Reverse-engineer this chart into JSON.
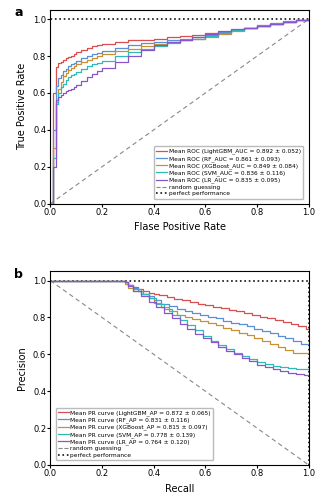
{
  "fig_size": [
    3.15,
    5.0
  ],
  "dpi": 100,
  "panel_a": {
    "title_label": "a",
    "xlabel": "Flase Positive Rate",
    "ylabel": "True Positive Rate",
    "xlim": [
      0.0,
      1.0
    ],
    "ylim": [
      0.0,
      1.05
    ],
    "xticks": [
      0.0,
      0.2,
      0.4,
      0.6,
      0.8,
      1.0
    ],
    "yticks": [
      0.0,
      0.2,
      0.4,
      0.6,
      0.8,
      1.0
    ],
    "curves": [
      {
        "name": "LightGBM",
        "label": "Mean ROC (LightGBM_AUC = 0.892 ± 0.052)",
        "color": "#d94f4f",
        "x": [
          0.0,
          0.01,
          0.02,
          0.03,
          0.04,
          0.05,
          0.06,
          0.07,
          0.08,
          0.09,
          0.1,
          0.12,
          0.14,
          0.16,
          0.18,
          0.2,
          0.25,
          0.3,
          0.35,
          0.4,
          0.45,
          0.5,
          0.55,
          0.6,
          0.65,
          0.7,
          0.75,
          0.8,
          0.85,
          0.9,
          0.95,
          1.0
        ],
        "y": [
          0.0,
          0.6,
          0.74,
          0.76,
          0.77,
          0.78,
          0.79,
          0.795,
          0.8,
          0.81,
          0.82,
          0.835,
          0.845,
          0.855,
          0.86,
          0.865,
          0.875,
          0.885,
          0.89,
          0.895,
          0.905,
          0.91,
          0.915,
          0.925,
          0.93,
          0.94,
          0.955,
          0.965,
          0.975,
          0.985,
          0.995,
          1.0
        ]
      },
      {
        "name": "RF",
        "label": "Mean ROC (RF_AUC = 0.861 ± 0.093)",
        "color": "#5b8fd6",
        "x": [
          0.0,
          0.01,
          0.02,
          0.03,
          0.04,
          0.05,
          0.06,
          0.07,
          0.08,
          0.09,
          0.1,
          0.12,
          0.14,
          0.16,
          0.18,
          0.2,
          0.25,
          0.3,
          0.35,
          0.4,
          0.45,
          0.5,
          0.55,
          0.6,
          0.65,
          0.7,
          0.75,
          0.8,
          0.85,
          0.9,
          0.95,
          1.0
        ],
        "y": [
          0.0,
          0.4,
          0.64,
          0.68,
          0.7,
          0.72,
          0.73,
          0.745,
          0.755,
          0.765,
          0.775,
          0.79,
          0.8,
          0.81,
          0.815,
          0.825,
          0.845,
          0.86,
          0.87,
          0.875,
          0.885,
          0.895,
          0.905,
          0.915,
          0.93,
          0.94,
          0.955,
          0.97,
          0.98,
          0.99,
          0.995,
          1.0
        ]
      },
      {
        "name": "XGBoost",
        "label": "Mean ROC (XGBoost_AUC = 0.849 ± 0.084)",
        "color": "#c89030",
        "x": [
          0.0,
          0.01,
          0.02,
          0.03,
          0.04,
          0.05,
          0.06,
          0.07,
          0.08,
          0.09,
          0.1,
          0.12,
          0.14,
          0.16,
          0.18,
          0.2,
          0.25,
          0.3,
          0.35,
          0.4,
          0.45,
          0.5,
          0.55,
          0.6,
          0.65,
          0.7,
          0.75,
          0.8,
          0.85,
          0.9,
          0.95,
          1.0
        ],
        "y": [
          0.0,
          0.3,
          0.55,
          0.62,
          0.66,
          0.69,
          0.71,
          0.725,
          0.735,
          0.745,
          0.755,
          0.77,
          0.78,
          0.79,
          0.8,
          0.81,
          0.825,
          0.84,
          0.855,
          0.865,
          0.875,
          0.885,
          0.895,
          0.905,
          0.92,
          0.935,
          0.95,
          0.965,
          0.975,
          0.985,
          0.995,
          1.0
        ]
      },
      {
        "name": "SVM",
        "label": "Mean ROC (SVM_AUC = 0.836 ± 0.116)",
        "color": "#2dbaba",
        "x": [
          0.0,
          0.01,
          0.02,
          0.03,
          0.04,
          0.05,
          0.06,
          0.07,
          0.08,
          0.09,
          0.1,
          0.12,
          0.14,
          0.16,
          0.18,
          0.2,
          0.25,
          0.3,
          0.35,
          0.4,
          0.45,
          0.5,
          0.55,
          0.6,
          0.65,
          0.7,
          0.75,
          0.8,
          0.85,
          0.9,
          0.95,
          1.0
        ],
        "y": [
          0.0,
          0.25,
          0.54,
          0.6,
          0.63,
          0.65,
          0.67,
          0.685,
          0.695,
          0.705,
          0.715,
          0.73,
          0.745,
          0.755,
          0.765,
          0.775,
          0.8,
          0.82,
          0.84,
          0.855,
          0.87,
          0.885,
          0.895,
          0.91,
          0.925,
          0.94,
          0.955,
          0.965,
          0.975,
          0.985,
          0.995,
          1.0
        ]
      },
      {
        "name": "LR",
        "label": "Mean ROC (LR_AUC = 0.835 ± 0.095)",
        "color": "#8855cc",
        "x": [
          0.0,
          0.01,
          0.02,
          0.03,
          0.04,
          0.05,
          0.06,
          0.07,
          0.08,
          0.09,
          0.1,
          0.12,
          0.14,
          0.16,
          0.18,
          0.2,
          0.25,
          0.3,
          0.35,
          0.4,
          0.45,
          0.5,
          0.55,
          0.6,
          0.65,
          0.7,
          0.75,
          0.8,
          0.85,
          0.9,
          0.95,
          1.0
        ],
        "y": [
          0.0,
          0.2,
          0.56,
          0.58,
          0.59,
          0.6,
          0.61,
          0.615,
          0.62,
          0.63,
          0.645,
          0.665,
          0.685,
          0.705,
          0.72,
          0.735,
          0.77,
          0.8,
          0.835,
          0.86,
          0.875,
          0.89,
          0.905,
          0.92,
          0.935,
          0.945,
          0.955,
          0.965,
          0.975,
          0.985,
          0.995,
          1.0
        ]
      }
    ]
  },
  "panel_b": {
    "title_label": "b",
    "xlabel": "Recall",
    "ylabel": "Precision",
    "xlim": [
      0.0,
      1.0
    ],
    "ylim": [
      0.0,
      1.05
    ],
    "xticks": [
      0.0,
      0.2,
      0.4,
      0.6,
      0.8,
      1.0
    ],
    "yticks": [
      0.0,
      0.2,
      0.4,
      0.6,
      0.8,
      1.0
    ],
    "curves": [
      {
        "name": "LightGBM",
        "label": "Mean PR curve (LightGBM_AP = 0.872 ± 0.065)",
        "color": "#d94f4f",
        "x": [
          0.0,
          0.28,
          0.29,
          0.3,
          0.32,
          0.34,
          0.36,
          0.38,
          0.4,
          0.42,
          0.45,
          0.48,
          0.51,
          0.54,
          0.57,
          0.6,
          0.63,
          0.66,
          0.69,
          0.72,
          0.75,
          0.78,
          0.81,
          0.84,
          0.87,
          0.9,
          0.93,
          0.96,
          0.99,
          1.0
        ],
        "y": [
          1.0,
          1.0,
          0.99,
          0.975,
          0.965,
          0.955,
          0.945,
          0.935,
          0.925,
          0.92,
          0.91,
          0.9,
          0.895,
          0.885,
          0.875,
          0.865,
          0.858,
          0.85,
          0.842,
          0.835,
          0.825,
          0.815,
          0.805,
          0.795,
          0.785,
          0.775,
          0.765,
          0.755,
          0.74,
          0.735
        ]
      },
      {
        "name": "RF",
        "label": "Mean PR curve (RF_AP = 0.831 ± 0.116)",
        "color": "#5b8fd6",
        "x": [
          0.0,
          0.28,
          0.29,
          0.3,
          0.32,
          0.34,
          0.36,
          0.38,
          0.4,
          0.43,
          0.46,
          0.49,
          0.52,
          0.55,
          0.58,
          0.61,
          0.64,
          0.67,
          0.7,
          0.73,
          0.76,
          0.79,
          0.82,
          0.85,
          0.88,
          0.91,
          0.94,
          0.97,
          1.0
        ],
        "y": [
          1.0,
          1.0,
          0.99,
          0.975,
          0.96,
          0.945,
          0.93,
          0.915,
          0.895,
          0.875,
          0.86,
          0.845,
          0.835,
          0.825,
          0.815,
          0.805,
          0.795,
          0.783,
          0.772,
          0.762,
          0.752,
          0.74,
          0.728,
          0.715,
          0.702,
          0.688,
          0.672,
          0.658,
          0.645
        ]
      },
      {
        "name": "XGBoost",
        "label": "Mean PR curve (XGBoost_AP = 0.815 ± 0.097)",
        "color": "#c89030",
        "x": [
          0.0,
          0.28,
          0.29,
          0.3,
          0.32,
          0.35,
          0.38,
          0.4,
          0.43,
          0.46,
          0.49,
          0.52,
          0.55,
          0.58,
          0.61,
          0.64,
          0.67,
          0.7,
          0.73,
          0.76,
          0.79,
          0.82,
          0.85,
          0.88,
          0.91,
          0.94,
          0.97,
          1.0
        ],
        "y": [
          1.0,
          1.0,
          0.98,
          0.96,
          0.945,
          0.925,
          0.905,
          0.88,
          0.855,
          0.835,
          0.815,
          0.8,
          0.79,
          0.78,
          0.77,
          0.758,
          0.745,
          0.732,
          0.718,
          0.705,
          0.688,
          0.672,
          0.655,
          0.638,
          0.622,
          0.61,
          0.61,
          0.605
        ]
      },
      {
        "name": "SVM",
        "label": "Mean PR curve (SVM_AP = 0.778 ± 0.139)",
        "color": "#2dbaba",
        "x": [
          0.0,
          0.28,
          0.29,
          0.3,
          0.32,
          0.35,
          0.38,
          0.41,
          0.44,
          0.47,
          0.5,
          0.53,
          0.56,
          0.59,
          0.62,
          0.65,
          0.68,
          0.71,
          0.74,
          0.77,
          0.8,
          0.83,
          0.86,
          0.89,
          0.92,
          0.95,
          0.98,
          1.0
        ],
        "y": [
          1.0,
          1.0,
          0.99,
          0.975,
          0.955,
          0.93,
          0.905,
          0.875,
          0.845,
          0.815,
          0.785,
          0.758,
          0.73,
          0.702,
          0.675,
          0.65,
          0.628,
          0.608,
          0.59,
          0.575,
          0.56,
          0.548,
          0.538,
          0.53,
          0.525,
          0.52,
          0.518,
          0.515
        ]
      },
      {
        "name": "LR",
        "label": "Mean PR curve (LR_AP = 0.764 ± 0.120)",
        "color": "#8855cc",
        "x": [
          0.0,
          0.28,
          0.29,
          0.3,
          0.32,
          0.35,
          0.38,
          0.41,
          0.44,
          0.47,
          0.5,
          0.53,
          0.56,
          0.59,
          0.62,
          0.65,
          0.68,
          0.71,
          0.74,
          0.77,
          0.8,
          0.83,
          0.86,
          0.89,
          0.92,
          0.95,
          0.98,
          1.0
        ],
        "y": [
          1.0,
          1.0,
          0.99,
          0.97,
          0.945,
          0.915,
          0.885,
          0.855,
          0.825,
          0.795,
          0.765,
          0.738,
          0.712,
          0.688,
          0.665,
          0.642,
          0.62,
          0.6,
          0.58,
          0.562,
          0.545,
          0.53,
          0.518,
          0.508,
          0.5,
          0.494,
          0.49,
          0.488
        ]
      }
    ]
  },
  "random_guess_color": "#888888",
  "perfect_color": "#111111",
  "line_width": 0.9,
  "legend_fontsize": 4.2,
  "axis_fontsize": 7,
  "tick_fontsize": 6,
  "label_fontsize": 9
}
